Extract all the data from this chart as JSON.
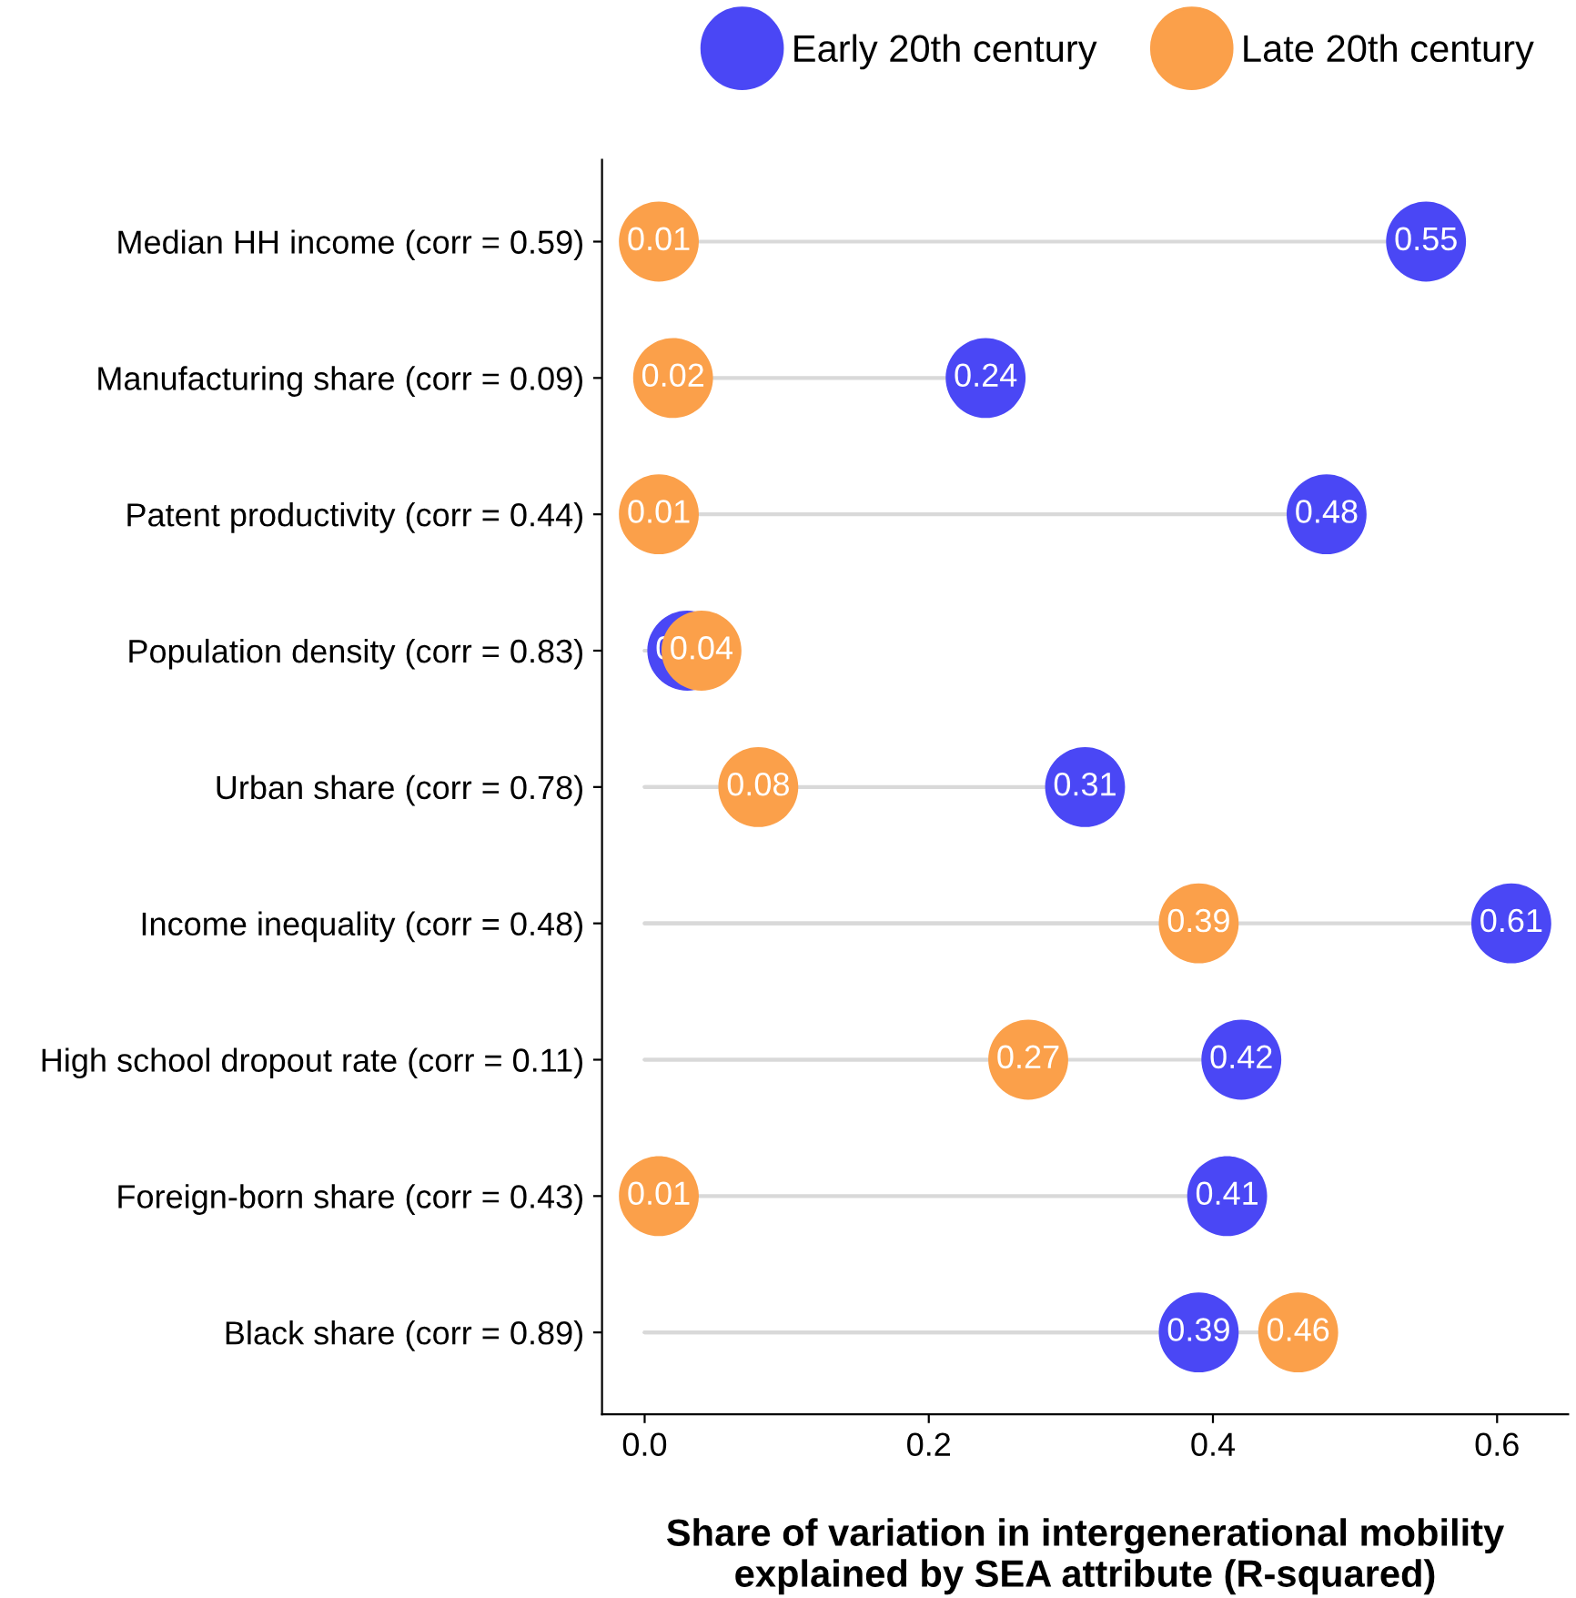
{
  "chart_data": {
    "type": "lollipop",
    "orientation": "horizontal",
    "xlabel": "Share of variation in intergenerational mobility\nexplained by SEA attribute (R-squared)",
    "categories": [
      "Median HH income (corr = 0.59)",
      "Manufacturing share (corr = 0.09)",
      "Patent productivity (corr = 0.44)",
      "Population density (corr = 0.83)",
      "Urban share (corr = 0.78)",
      "Income inequality (corr = 0.48)",
      "High school dropout rate (corr = 0.11)",
      "Foreign-born share (corr = 0.43)",
      "Black share (corr = 0.89)"
    ],
    "series": [
      {
        "name": "Early 20th century",
        "color": "#4a47f5",
        "values": [
          0.55,
          0.24,
          0.48,
          0.03,
          0.31,
          0.61,
          0.42,
          0.41,
          0.39
        ]
      },
      {
        "name": "Late 20th century",
        "color": "#fba04a",
        "values": [
          0.01,
          0.02,
          0.01,
          0.04,
          0.08,
          0.39,
          0.27,
          0.01,
          0.46
        ]
      }
    ],
    "xlim": [
      -0.03,
      0.65
    ],
    "xticks": [
      {
        "value": 0,
        "label": "0.0"
      },
      {
        "value": 0.2,
        "label": "0.2"
      },
      {
        "value": 0.4,
        "label": "0.4"
      },
      {
        "value": 0.6,
        "label": "0.6"
      }
    ],
    "data_labels": true,
    "legend": "top right",
    "grid": false,
    "marker": "circle"
  }
}
